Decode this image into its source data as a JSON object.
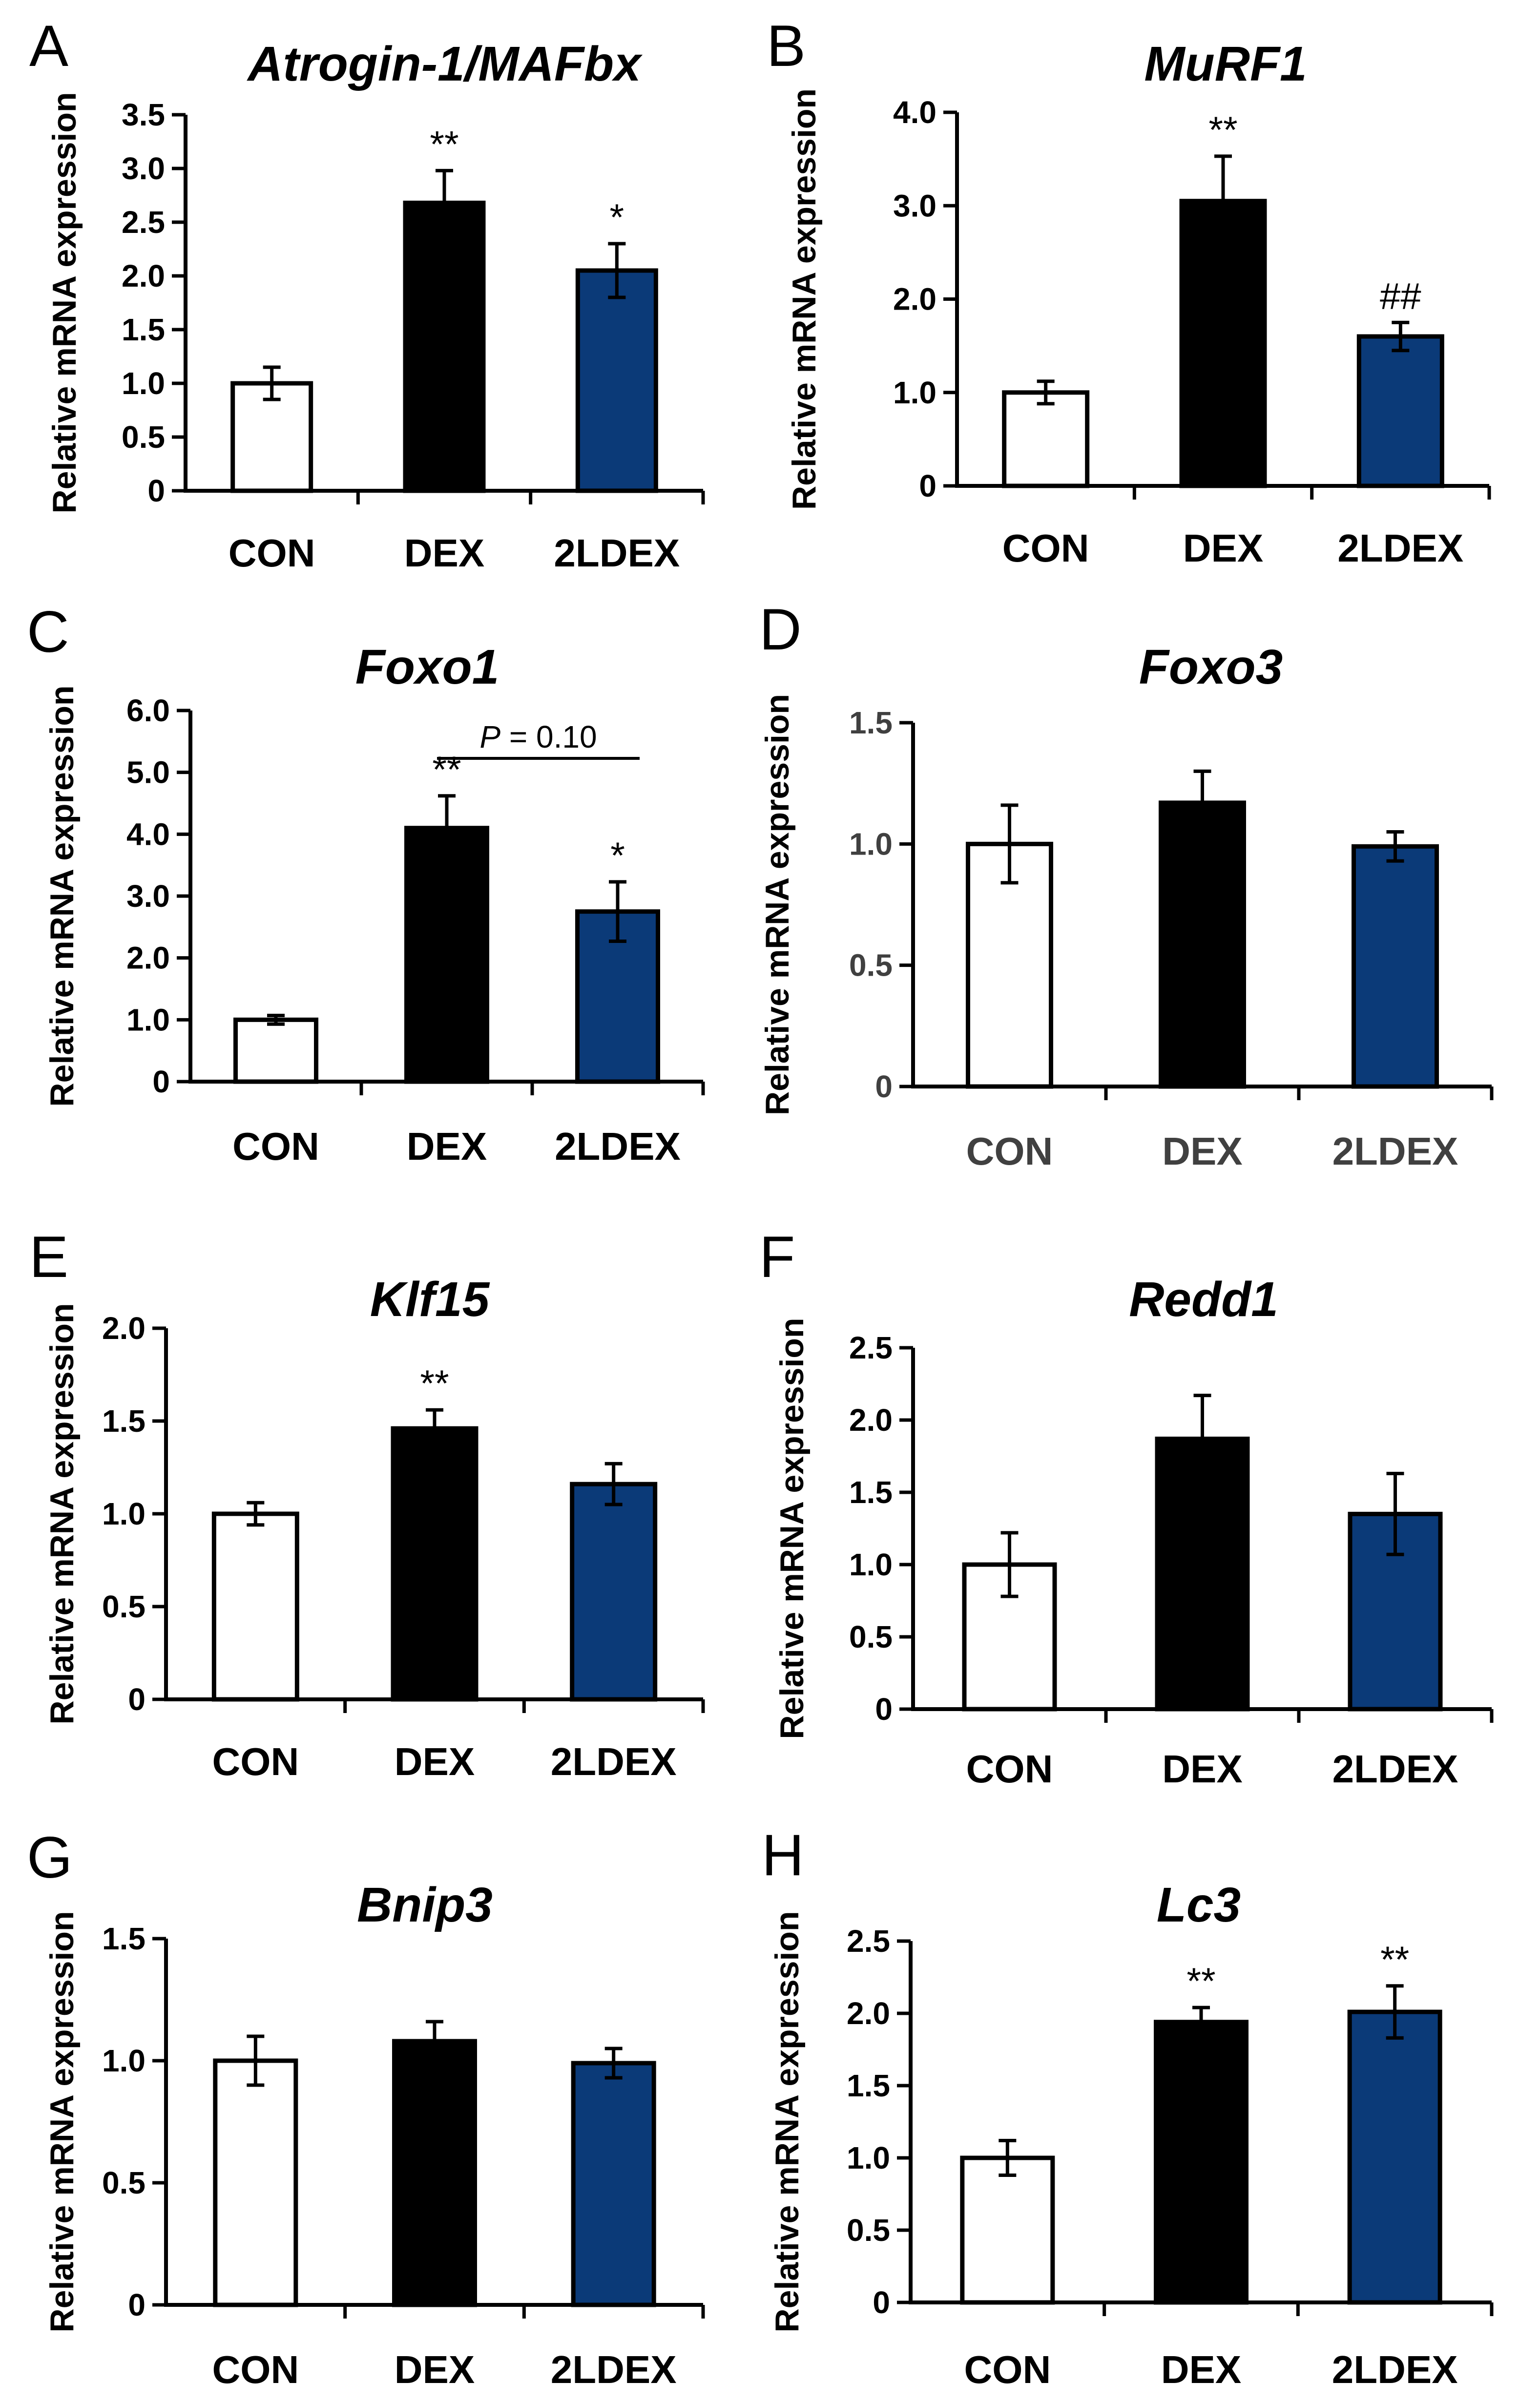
{
  "colors": {
    "CON": "#ffffff",
    "DEX": "#000000",
    "2LDEX": "#0b3a78"
  },
  "chart_data": [
    {
      "panel": "A",
      "type": "bar",
      "title": "Atrogin-1/MAFbx",
      "ylabel": "Relative mRNA expression",
      "categories": [
        "CON",
        "DEX",
        "2LDEX"
      ],
      "values": [
        1.0,
        2.68,
        2.05
      ],
      "errors": [
        0.15,
        0.3,
        0.25
      ],
      "annotations": [
        "",
        "**",
        "*"
      ],
      "ylim": [
        0,
        3.5
      ],
      "ticks": [
        0,
        0.5,
        1.0,
        1.5,
        2.0,
        2.5,
        3.0,
        3.5
      ],
      "tick_labels": [
        "0",
        "0.5",
        "1.0",
        "1.5",
        "2.0",
        "2.5",
        "3.0",
        "3.5"
      ]
    },
    {
      "panel": "B",
      "type": "bar",
      "title": "MuRF1",
      "ylabel": "Relative mRNA expression",
      "categories": [
        "CON",
        "DEX",
        "2LDEX"
      ],
      "values": [
        1.0,
        3.05,
        1.6
      ],
      "errors": [
        0.12,
        0.48,
        0.15
      ],
      "annotations": [
        "",
        "**",
        "##"
      ],
      "ylim": [
        0,
        4.0
      ],
      "ticks": [
        0,
        1.0,
        2.0,
        3.0,
        4.0
      ],
      "tick_labels": [
        "0",
        "1.0",
        "2.0",
        "3.0",
        "4.0"
      ]
    },
    {
      "panel": "C",
      "type": "bar",
      "title": "Foxo1",
      "ylabel": "Relative mRNA expression",
      "categories": [
        "CON",
        "DEX",
        "2LDEX"
      ],
      "values": [
        1.0,
        4.1,
        2.75
      ],
      "errors": [
        0.07,
        0.52,
        0.48
      ],
      "annotations": [
        "",
        "**",
        "*"
      ],
      "ylim": [
        0,
        6.0
      ],
      "ticks": [
        0,
        1.0,
        2.0,
        3.0,
        4.0,
        5.0,
        6.0
      ],
      "tick_labels": [
        "0",
        "1.0",
        "2.0",
        "3.0",
        "4.0",
        "5.0",
        "6.0"
      ],
      "comparison": {
        "from": "DEX",
        "to": "2LDEX",
        "label_p": "P",
        "label_rest": " = 0.10"
      }
    },
    {
      "panel": "D",
      "type": "bar",
      "title": "Foxo3",
      "ylabel": "Relative mRNA expression",
      "categories": [
        "CON",
        "DEX",
        "2LDEX"
      ],
      "values": [
        1.0,
        1.17,
        0.99
      ],
      "errors": [
        0.16,
        0.13,
        0.06
      ],
      "annotations": [
        "",
        "",
        ""
      ],
      "ylim": [
        0,
        1.5
      ],
      "ticks": [
        0,
        0.5,
        1.0,
        1.5
      ],
      "tick_labels": [
        "0",
        "0.5",
        "1.0",
        "1.5"
      ]
    },
    {
      "panel": "E",
      "type": "bar",
      "title": "Klf15",
      "ylabel": "Relative mRNA expression",
      "categories": [
        "CON",
        "DEX",
        "2LDEX"
      ],
      "values": [
        1.0,
        1.46,
        1.16
      ],
      "errors": [
        0.06,
        0.1,
        0.11
      ],
      "annotations": [
        "",
        "**",
        ""
      ],
      "ylim": [
        0,
        2.0
      ],
      "ticks": [
        0,
        0.5,
        1.0,
        1.5,
        2.0
      ],
      "tick_labels": [
        "0",
        "0.5",
        "1.0",
        "1.5",
        "2.0"
      ]
    },
    {
      "panel": "F",
      "type": "bar",
      "title": "Redd1",
      "ylabel": "Relative mRNA expression",
      "categories": [
        "CON",
        "DEX",
        "2LDEX"
      ],
      "values": [
        1.0,
        1.87,
        1.35
      ],
      "errors": [
        0.22,
        0.3,
        0.28
      ],
      "annotations": [
        "",
        "",
        ""
      ],
      "ylim": [
        0,
        2.5
      ],
      "ticks": [
        0,
        0.5,
        1.0,
        1.5,
        2.0,
        2.5
      ],
      "tick_labels": [
        "0",
        "0.5",
        "1.0",
        "1.5",
        "2.0",
        "2.5"
      ]
    },
    {
      "panel": "G",
      "type": "bar",
      "title": "Bnip3",
      "ylabel": "Relative mRNA expression",
      "categories": [
        "CON",
        "DEX",
        "2LDEX"
      ],
      "values": [
        1.0,
        1.08,
        0.99
      ],
      "errors": [
        0.1,
        0.08,
        0.06
      ],
      "annotations": [
        "",
        "",
        ""
      ],
      "ylim": [
        0,
        1.5
      ],
      "ticks": [
        0,
        0.5,
        1.0,
        1.5
      ],
      "tick_labels": [
        "0",
        "0.5",
        "1.0",
        "1.5"
      ]
    },
    {
      "panel": "H",
      "type": "bar",
      "title": "Lc3",
      "ylabel": "Relative mRNA expression",
      "categories": [
        "CON",
        "DEX",
        "2LDEX"
      ],
      "values": [
        1.0,
        1.94,
        2.01
      ],
      "errors": [
        0.12,
        0.1,
        0.18
      ],
      "annotations": [
        "",
        "**",
        "**"
      ],
      "ylim": [
        0,
        2.5
      ],
      "ticks": [
        0,
        0.5,
        1.0,
        1.5,
        2.0,
        2.5
      ],
      "tick_labels": [
        "0",
        "0.5",
        "1.0",
        "1.5",
        "2.0",
        "2.5"
      ]
    }
  ]
}
